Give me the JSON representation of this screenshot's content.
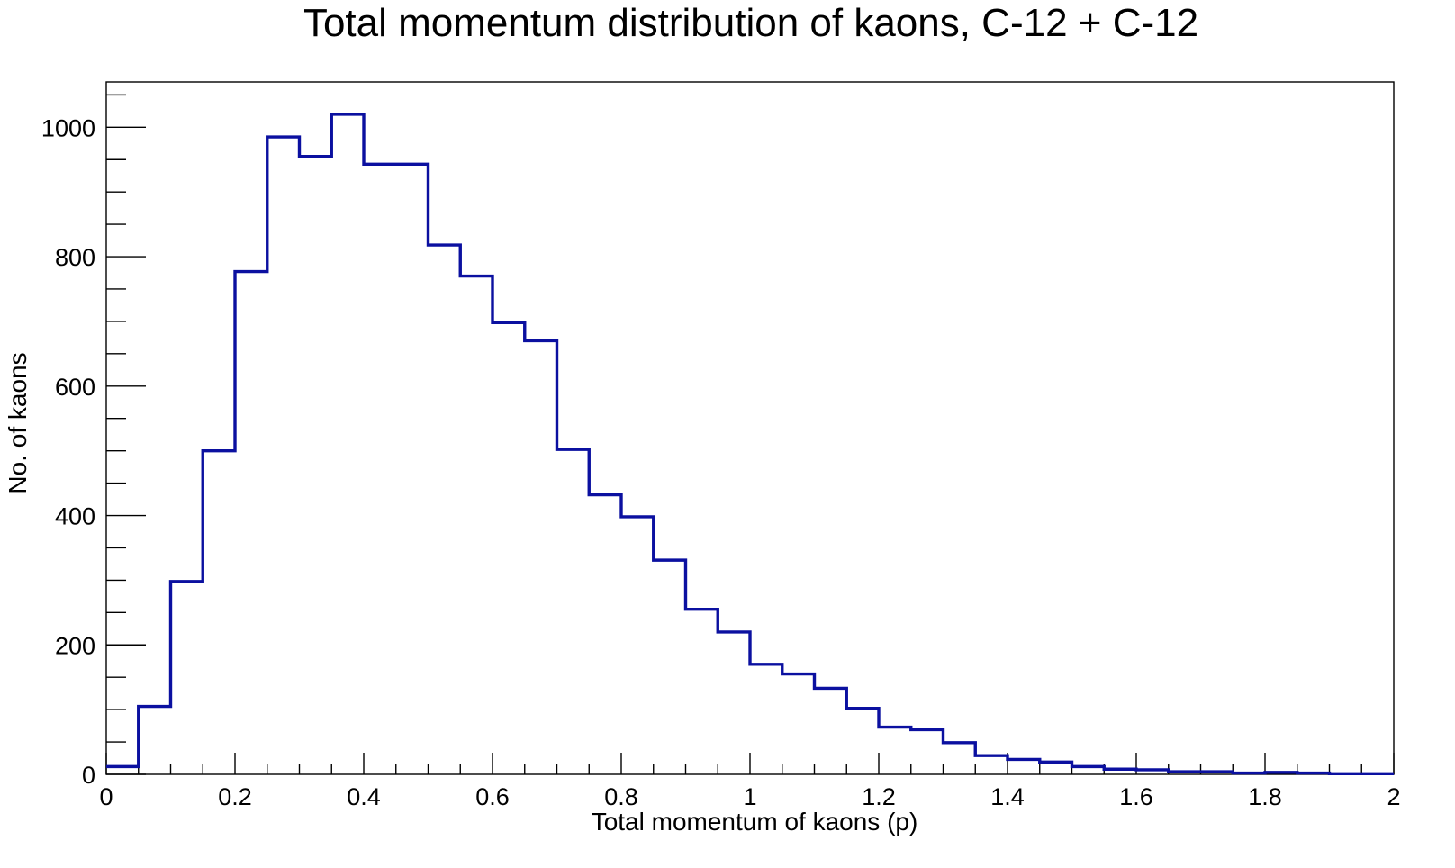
{
  "chart_data": {
    "type": "histogram",
    "title": "Total momentum distribution of kaons, C-12 + C-12",
    "xlabel": "Total momentum of kaons (p)",
    "ylabel": "No. of kaons",
    "xlim": [
      0,
      2
    ],
    "ylim": [
      0,
      1070
    ],
    "x_tick_labels": [
      "0",
      "0.2",
      "0.4",
      "0.6",
      "0.8",
      "1",
      "1.2",
      "1.4",
      "1.6",
      "1.8",
      "2"
    ],
    "y_tick_labels": [
      "0",
      "200",
      "400",
      "600",
      "800",
      "1000"
    ],
    "bin_width": 0.05,
    "bin_edges_start": 0,
    "values": [
      12,
      105,
      298,
      500,
      777,
      985,
      955,
      1020,
      943,
      943,
      818,
      770,
      698,
      670,
      502,
      432,
      398,
      331,
      255,
      220,
      170,
      155,
      133,
      102,
      73,
      69,
      49,
      29,
      23,
      19,
      12,
      8,
      7,
      4,
      4,
      2,
      3,
      2,
      1,
      1
    ],
    "line_color": "#0b10a0",
    "grid": false,
    "legend": "none"
  }
}
